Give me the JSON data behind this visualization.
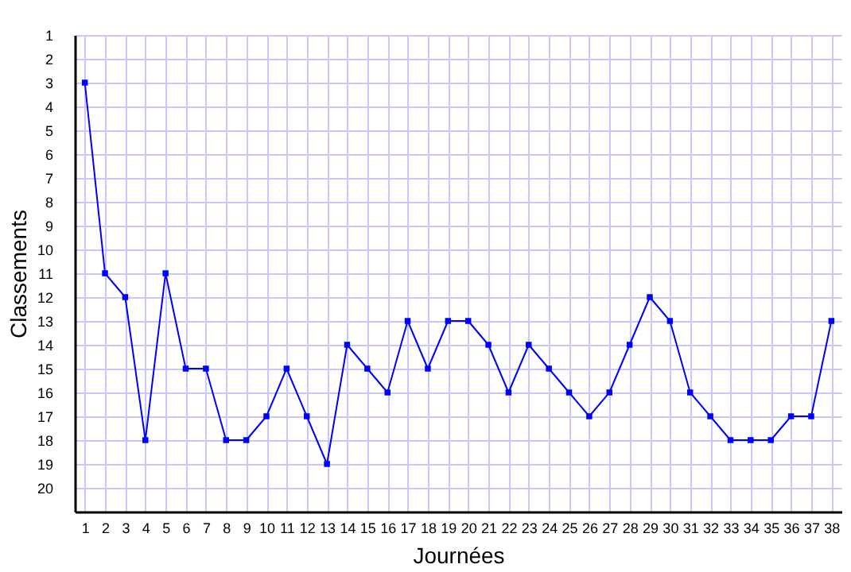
{
  "chart_data": {
    "type": "line",
    "xlabel": "Journées",
    "ylabel": "Classements",
    "x": [
      1,
      2,
      3,
      4,
      5,
      6,
      7,
      8,
      9,
      10,
      11,
      12,
      13,
      14,
      15,
      16,
      17,
      18,
      19,
      20,
      21,
      22,
      23,
      24,
      25,
      26,
      27,
      28,
      29,
      30,
      31,
      32,
      33,
      34,
      35,
      36,
      37,
      38
    ],
    "series": [
      {
        "color": "#0000ff",
        "values": [
          3,
          11,
          12,
          18,
          11,
          15,
          15,
          18,
          18,
          17,
          15,
          17,
          19,
          14,
          15,
          16,
          13,
          15,
          13,
          13,
          14,
          16,
          14,
          15,
          16,
          17,
          16,
          14,
          12,
          13,
          16,
          17,
          18,
          18,
          18,
          17,
          17,
          13
        ]
      }
    ],
    "xlim": [
      0.5,
      38.5
    ],
    "xticks": [
      1,
      2,
      3,
      4,
      5,
      6,
      7,
      8,
      9,
      10,
      11,
      12,
      13,
      14,
      15,
      16,
      17,
      18,
      19,
      20,
      21,
      22,
      23,
      24,
      25,
      26,
      27,
      28,
      29,
      30,
      31,
      32,
      33,
      34,
      35,
      36,
      37,
      38
    ],
    "ylim": [
      21,
      1
    ],
    "yticks": [
      1,
      2,
      3,
      4,
      5,
      6,
      7,
      8,
      9,
      10,
      11,
      12,
      13,
      14,
      15,
      16,
      17,
      18,
      19,
      20
    ],
    "grid": true,
    "marker": "square",
    "line_style": "solid"
  }
}
